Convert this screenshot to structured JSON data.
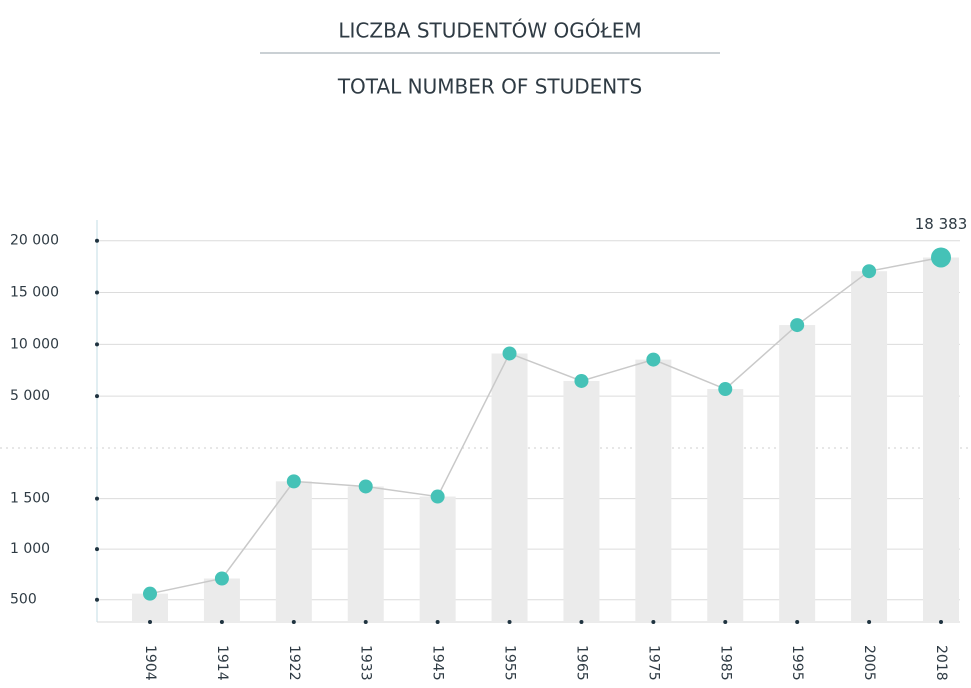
{
  "chart_data": {
    "type": "bar",
    "title": "LICZBA STUDENTÓW OGÓŁEM",
    "subtitle": "TOTAL NUMBER OF STUDENTS",
    "categories": [
      "1904",
      "1914",
      "1922",
      "1933",
      "1945",
      "1955",
      "1965",
      "1975",
      "1985",
      "1995",
      "2005",
      "2018"
    ],
    "values": [
      560,
      710,
      1670,
      1620,
      1520,
      9120,
      6470,
      8530,
      5690,
      11860,
      17060,
      18383
    ],
    "value_labels": [
      null,
      null,
      null,
      null,
      null,
      null,
      null,
      null,
      null,
      null,
      null,
      "18 383"
    ],
    "bar_color": "#ebebeb",
    "line_color": "#c9c9c9",
    "marker_color": "#45c2b7",
    "ylim": [
      280,
      2000
    ],
    "yticks": [
      500,
      {
        "value": 1000,
        "label": "1 000"
      },
      {
        "value": 1500,
        "label": "1 500"
      }
    ],
    "y2lim": [
      0,
      22000
    ],
    "y2ticks": [
      {
        "value": 5000,
        "label": "5 000"
      },
      {
        "value": 10000,
        "label": "10 000"
      },
      {
        "value": 15000,
        "label": "15 000"
      },
      {
        "value": 20000,
        "label": "20 000"
      }
    ],
    "grid": true
  }
}
